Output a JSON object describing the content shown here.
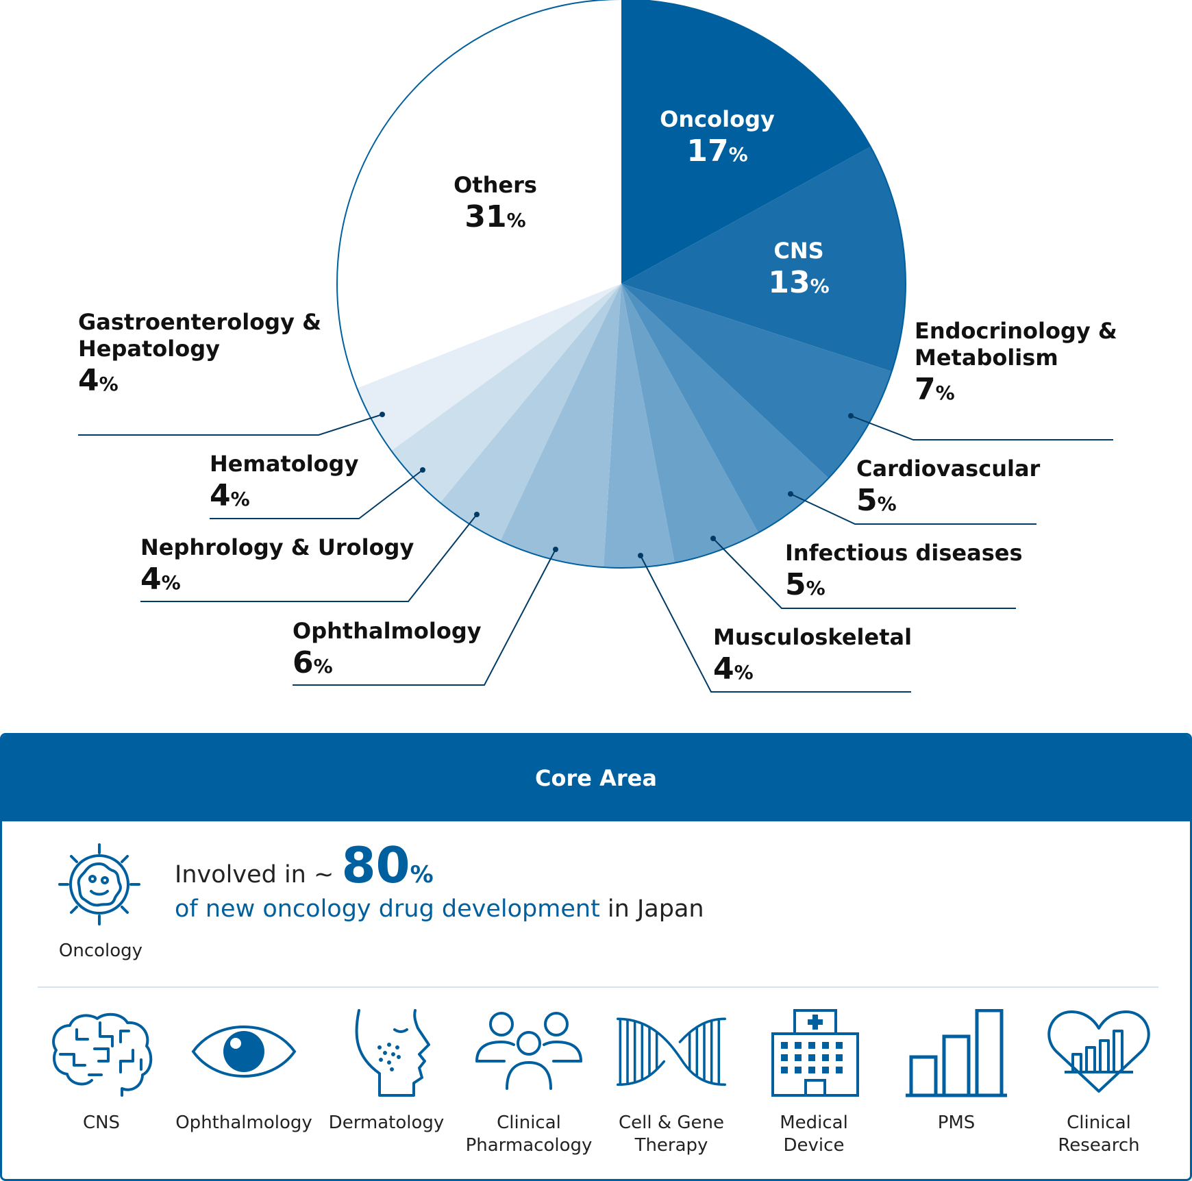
{
  "chart_data": {
    "type": "pie",
    "slices": [
      {
        "label": "Oncology",
        "value": 17,
        "color": "#005f9e",
        "label_color": "#ffffff"
      },
      {
        "label": "CNS",
        "value": 13,
        "color": "#1a6fab",
        "label_color": "#ffffff"
      },
      {
        "label": "Endocrinology &\nMetabolism",
        "value": 7,
        "color": "#337fb5",
        "label_color": "#111111"
      },
      {
        "label": "Cardiovascular",
        "value": 5,
        "color": "#4f91c0",
        "label_color": "#111111"
      },
      {
        "label": "Infectious diseases",
        "value": 5,
        "color": "#6aa2ca",
        "label_color": "#111111"
      },
      {
        "label": "Musculoskeletal",
        "value": 4,
        "color": "#82b1d3",
        "label_color": "#111111"
      },
      {
        "label": "Ophthalmology",
        "value": 6,
        "color": "#9abfda",
        "label_color": "#111111"
      },
      {
        "label": "Nephrology & Urology",
        "value": 4,
        "color": "#b3cfe3",
        "label_color": "#111111"
      },
      {
        "label": "Hematology",
        "value": 4,
        "color": "#ccdfec",
        "label_color": "#111111"
      },
      {
        "label": "Gastroenterology &\nHepatology",
        "value": 4,
        "color": "#e5eef6",
        "label_color": "#111111"
      },
      {
        "label": "Others",
        "value": 31,
        "color": "#ffffff",
        "label_color": "#111111"
      }
    ],
    "unit": "%",
    "outline_color": "#005f9e",
    "leader_color": "#003b66"
  },
  "core_area": {
    "title": "Core Area",
    "oncology_label": "Oncology",
    "headline_prefix": "Involved in ~ ",
    "headline_number": "80",
    "headline_percent": "%",
    "subline_highlight": "of new oncology drug development",
    "subline_suffix": " in Japan",
    "areas": [
      {
        "label": "CNS",
        "icon": "brain-icon"
      },
      {
        "label": "Ophthalmology",
        "icon": "eye-icon"
      },
      {
        "label": "Dermatology",
        "icon": "face-skin-icon"
      },
      {
        "label": "Clinical\nPharmacology",
        "icon": "people-group-icon"
      },
      {
        "label": "Cell & Gene\nTherapy",
        "icon": "dna-helix-icon"
      },
      {
        "label": "Medical\nDevice",
        "icon": "hospital-building-icon"
      },
      {
        "label": "PMS",
        "icon": "bar-chart-icon"
      },
      {
        "label": "Clinical\nResearch",
        "icon": "heart-chart-icon"
      }
    ]
  },
  "colors": {
    "brand": "#005f9e",
    "divider": "#d6e3ee"
  }
}
